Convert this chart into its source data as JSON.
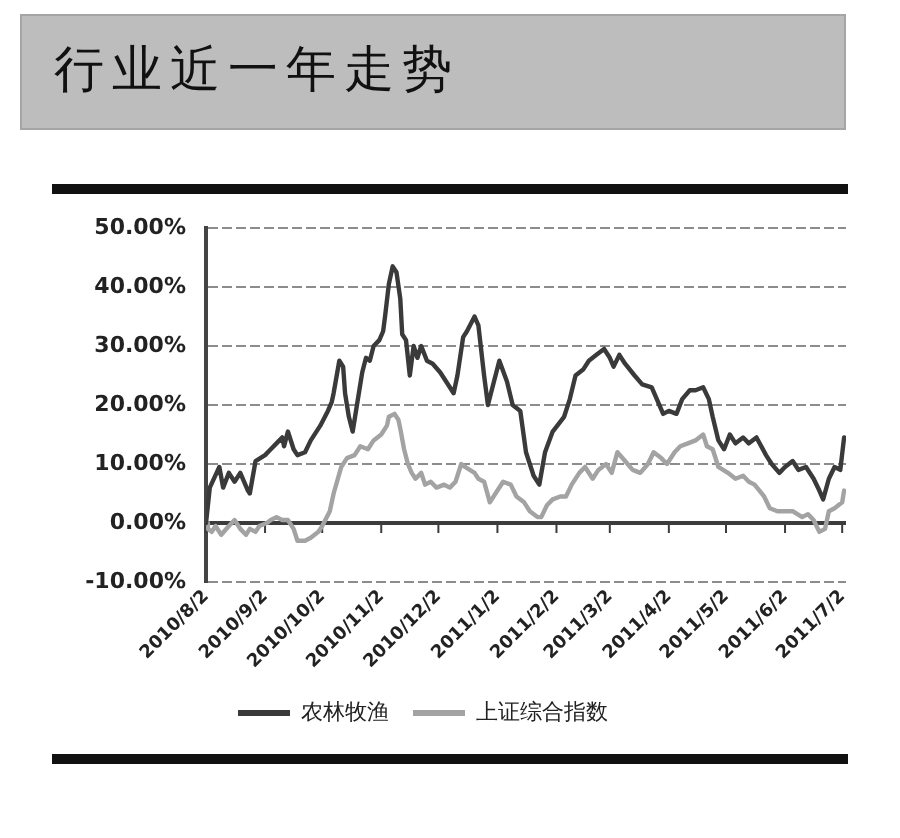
{
  "chart_data": {
    "type": "line",
    "title": "行业近一年走势",
    "xlim": [
      "2010-08-02",
      "2011-07-04"
    ],
    "xticks": [
      {
        "value": "2010-08-02",
        "label": "2010/8/2"
      },
      {
        "value": "2010-09-02",
        "label": "2010/9/2"
      },
      {
        "value": "2010-10-02",
        "label": "2010/10/2"
      },
      {
        "value": "2010-11-02",
        "label": "2010/11/2"
      },
      {
        "value": "2010-12-02",
        "label": "2010/12/2"
      },
      {
        "value": "2011-01-02",
        "label": "2011/1/2"
      },
      {
        "value": "2011-02-02",
        "label": "2011/2/2"
      },
      {
        "value": "2011-03-02",
        "label": "2011/3/2"
      },
      {
        "value": "2011-04-02",
        "label": "2011/4/2"
      },
      {
        "value": "2011-05-02",
        "label": "2011/5/2"
      },
      {
        "value": "2011-06-02",
        "label": "2011/6/2"
      },
      {
        "value": "2011-07-02",
        "label": "2011/7/2"
      }
    ],
    "ylim": [
      -10,
      50
    ],
    "yticks": [
      {
        "value": -10,
        "label": "-10.00%"
      },
      {
        "value": 0,
        "label": "0.00%"
      },
      {
        "value": 10,
        "label": "10.00%"
      },
      {
        "value": 20,
        "label": "20.00%"
      },
      {
        "value": 30,
        "label": "30.00%"
      },
      {
        "value": 40,
        "label": "40.00%"
      },
      {
        "value": 50,
        "label": "50.00%"
      }
    ],
    "grid": "y",
    "legend": "bottom",
    "ref_lines": [
      {
        "axis": "y",
        "value": 0,
        "color": "#3c3c3c"
      }
    ],
    "series": [
      {
        "name": "农林牧渔",
        "color": "#3a3a3a",
        "x": [
          "2010-08-02",
          "2010-08-04",
          "2010-08-09",
          "2010-08-11",
          "2010-08-14",
          "2010-08-17",
          "2010-08-20",
          "2010-08-24",
          "2010-08-25",
          "2010-08-28",
          "2010-09-02",
          "2010-09-05",
          "2010-09-08",
          "2010-09-11",
          "2010-09-12",
          "2010-09-14",
          "2010-09-17",
          "2010-09-19",
          "2010-09-23",
          "2010-09-26",
          "2010-10-01",
          "2010-10-05",
          "2010-10-07",
          "2010-10-08",
          "2010-10-11",
          "2010-10-13",
          "2010-10-14",
          "2010-10-16",
          "2010-10-18",
          "2010-10-21",
          "2010-10-23",
          "2010-10-25",
          "2010-10-27",
          "2010-10-29",
          "2010-11-01",
          "2010-11-03",
          "2010-11-04",
          "2010-11-06",
          "2010-11-08",
          "2010-11-10",
          "2010-11-12",
          "2010-11-13",
          "2010-11-15",
          "2010-11-17",
          "2010-11-19",
          "2010-11-21",
          "2010-11-23",
          "2010-11-26",
          "2010-11-29",
          "2010-12-03",
          "2010-12-08",
          "2010-12-10",
          "2010-12-12",
          "2010-12-15",
          "2010-12-17",
          "2010-12-21",
          "2010-12-23",
          "2010-12-26",
          "2010-12-28",
          "2010-12-30",
          "2011-01-03",
          "2011-01-07",
          "2011-01-10",
          "2011-01-14",
          "2011-01-17",
          "2011-01-21",
          "2011-01-24",
          "2011-01-27",
          "2011-01-31",
          "2011-02-06",
          "2011-02-09",
          "2011-02-12",
          "2011-02-16",
          "2011-02-19",
          "2011-02-23",
          "2011-02-27",
          "2011-03-02",
          "2011-03-04",
          "2011-03-07",
          "2011-03-10",
          "2011-03-15",
          "2011-03-19",
          "2011-03-24",
          "2011-03-26",
          "2011-03-30",
          "2011-04-02",
          "2011-04-06",
          "2011-04-09",
          "2011-04-13",
          "2011-04-16",
          "2011-04-20",
          "2011-04-23",
          "2011-04-25",
          "2011-04-28",
          "2011-05-01",
          "2011-05-04",
          "2011-05-07",
          "2011-05-11",
          "2011-05-14",
          "2011-05-18",
          "2011-05-23",
          "2011-05-26",
          "2011-05-30",
          "2011-06-02",
          "2011-06-06",
          "2011-06-09",
          "2011-06-13",
          "2011-06-17",
          "2011-06-20",
          "2011-06-22",
          "2011-06-25",
          "2011-06-28",
          "2011-07-01",
          "2011-07-03"
        ],
        "values": [
          0,
          6,
          9.5,
          6,
          8.5,
          7,
          8.5,
          5.5,
          5,
          10.5,
          11.5,
          12.5,
          13.5,
          14.5,
          13,
          15.5,
          12.5,
          11.5,
          12,
          14,
          16.5,
          19,
          20.5,
          22,
          27.5,
          26.5,
          22,
          18,
          15.5,
          21.5,
          25.5,
          28,
          27.5,
          30,
          31,
          32.5,
          35,
          40.5,
          43.5,
          42.5,
          38,
          32,
          31,
          25,
          30,
          28,
          30,
          27.5,
          27,
          25.5,
          23,
          22,
          25,
          31.5,
          32.5,
          35,
          33.5,
          25,
          20,
          22.5,
          27.5,
          24,
          20,
          19,
          12,
          8,
          6.5,
          12,
          15.5,
          18,
          21,
          25,
          26,
          27.5,
          28.5,
          29.5,
          28,
          26.5,
          28.5,
          27,
          25,
          23.5,
          23,
          21.5,
          18.5,
          19,
          18.5,
          21,
          22.5,
          22.5,
          23,
          21,
          18,
          14,
          12.5,
          15,
          13.5,
          14.5,
          13.5,
          14.5,
          11.5,
          10,
          8.5,
          9.5,
          10.5,
          9,
          9.5,
          7.5,
          5.5,
          4,
          7.5,
          9.5,
          9,
          14.5
        ]
      },
      {
        "name": "上证综合指数",
        "color": "#a3a3a3",
        "x": [
          "2010-08-02",
          "2010-08-03",
          "2010-08-05",
          "2010-08-07",
          "2010-08-10",
          "2010-08-14",
          "2010-08-17",
          "2010-08-20",
          "2010-08-23",
          "2010-08-25",
          "2010-08-28",
          "2010-08-30",
          "2010-09-03",
          "2010-09-05",
          "2010-09-08",
          "2010-09-11",
          "2010-09-14",
          "2010-09-17",
          "2010-09-19",
          "2010-09-23",
          "2010-09-26",
          "2010-09-30",
          "2010-10-02",
          "2010-10-06",
          "2010-10-08",
          "2010-10-12",
          "2010-10-15",
          "2010-10-19",
          "2010-10-22",
          "2010-10-26",
          "2010-10-29",
          "2010-11-02",
          "2010-11-05",
          "2010-11-06",
          "2010-11-09",
          "2010-11-11",
          "2010-11-12",
          "2010-11-14",
          "2010-11-16",
          "2010-11-18",
          "2010-11-20",
          "2010-11-23",
          "2010-11-25",
          "2010-11-28",
          "2010-12-01",
          "2010-12-05",
          "2010-12-08",
          "2010-12-11",
          "2010-12-14",
          "2010-12-16",
          "2010-12-21",
          "2010-12-23",
          "2010-12-26",
          "2010-12-29",
          "2011-01-02",
          "2011-01-05",
          "2011-01-09",
          "2011-01-12",
          "2011-01-16",
          "2011-01-19",
          "2011-01-23",
          "2011-01-25",
          "2011-01-28",
          "2011-01-31",
          "2011-02-04",
          "2011-02-07",
          "2011-02-10",
          "2011-02-14",
          "2011-02-17",
          "2011-02-21",
          "2011-02-24",
          "2011-02-28",
          "2011-03-03",
          "2011-03-06",
          "2011-03-10",
          "2011-03-14",
          "2011-03-18",
          "2011-03-22",
          "2011-03-25",
          "2011-03-29",
          "2011-04-01",
          "2011-04-05",
          "2011-04-08",
          "2011-04-12",
          "2011-04-16",
          "2011-04-20",
          "2011-04-22",
          "2011-04-25",
          "2011-04-28",
          "2011-05-03",
          "2011-05-07",
          "2011-05-11",
          "2011-05-14",
          "2011-05-17",
          "2011-05-22",
          "2011-05-25",
          "2011-05-29",
          "2011-06-02",
          "2011-06-06",
          "2011-06-11",
          "2011-06-14",
          "2011-06-17",
          "2011-06-20",
          "2011-06-23",
          "2011-06-25",
          "2011-06-28",
          "2011-07-02",
          "2011-07-03"
        ],
        "values": [
          0,
          -1,
          -1.5,
          -0.5,
          -2,
          -0.5,
          0.5,
          -1,
          -2,
          -1,
          -1.5,
          -0.5,
          0,
          0.5,
          1,
          0.5,
          0.5,
          -1,
          -3,
          -3,
          -2.5,
          -1.5,
          -0.5,
          2,
          5,
          9.5,
          11,
          11.5,
          13,
          12.5,
          14,
          15,
          16.5,
          18,
          18.5,
          17.5,
          16,
          12.5,
          10,
          8.5,
          7.5,
          8.5,
          6.5,
          7,
          6,
          6.5,
          6,
          7,
          10,
          9.5,
          8.5,
          7.5,
          7,
          3.5,
          5.5,
          7,
          6.5,
          4.5,
          3.5,
          2,
          1,
          1,
          3,
          4,
          4.5,
          4.5,
          6.5,
          8.5,
          9.5,
          7.5,
          9,
          10,
          8.5,
          12,
          10.5,
          9,
          8.5,
          10,
          12,
          11,
          10,
          12,
          13,
          13.5,
          14,
          15,
          13,
          12.5,
          9.5,
          8.5,
          7.5,
          8,
          7,
          6.5,
          4.5,
          2.5,
          2,
          2,
          2,
          1,
          1.5,
          0.5,
          -1.5,
          -1,
          2,
          2.5,
          3.5,
          5.5
        ]
      }
    ]
  }
}
